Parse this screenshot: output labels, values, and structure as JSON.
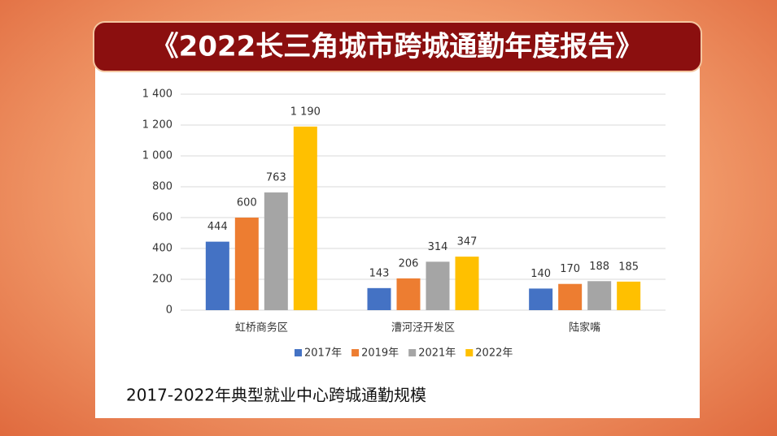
{
  "chart_data": {
    "type": "bar",
    "title": "《2022长三角城市跨城通勤年度报告》",
    "caption": "2017-2022年典型就业中心跨城通勤规模",
    "categories": [
      "虹桥商务区",
      "漕河泾开发区",
      "陆家嘴"
    ],
    "series": [
      {
        "name": "2017年",
        "color": "#4472c4",
        "values": [
          444,
          143,
          140
        ]
      },
      {
        "name": "2019年",
        "color": "#ed7d31",
        "values": [
          600,
          206,
          170
        ]
      },
      {
        "name": "2021年",
        "color": "#a5a5a5",
        "values": [
          763,
          314,
          188
        ]
      },
      {
        "name": "2022年",
        "color": "#ffc000",
        "values": [
          1190,
          347,
          185
        ],
        "value_labels": [
          "1 190",
          "347",
          "185"
        ]
      }
    ],
    "ylim": [
      0,
      1400
    ],
    "yticks": [
      0,
      200,
      400,
      600,
      800,
      {
        "value": 1000,
        "label": "1 000"
      },
      {
        "value": 1200,
        "label": "1 200"
      },
      {
        "value": 1400,
        "label": "1 400"
      }
    ],
    "grid": true,
    "legend": "bottom"
  }
}
